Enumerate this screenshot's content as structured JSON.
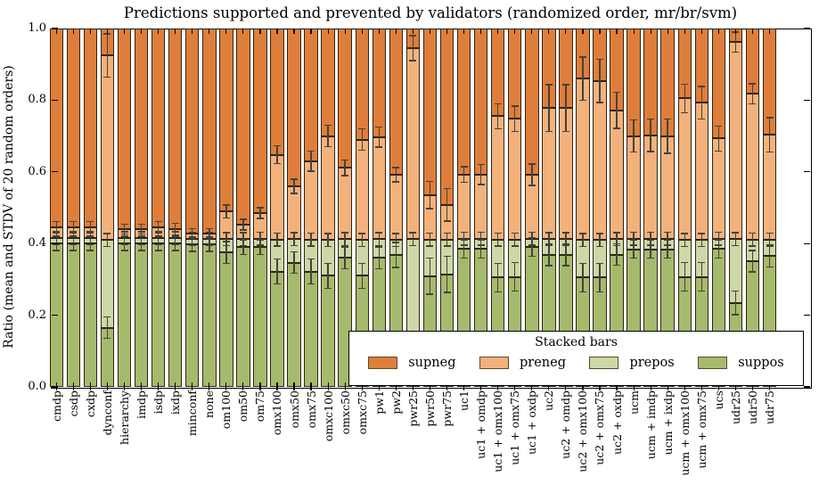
{
  "title": "Predictions supported and prevented by validators (randomized order, mr/br/svm)",
  "ylabel": "Ratio (mean and STDV of 20 random orders)",
  "legend": {
    "title": "Stacked bars",
    "entries": [
      {
        "label": "supneg",
        "color": "#df7e3b"
      },
      {
        "label": "preneg",
        "color": "#f3b27c"
      },
      {
        "label": "prepos",
        "color": "#cdd8a7"
      },
      {
        "label": "suppos",
        "color": "#a6ba6d"
      }
    ]
  },
  "axes": {
    "yticks": [
      "0.0",
      "0.2",
      "0.4",
      "0.6",
      "0.8",
      "1.0"
    ],
    "ylim": [
      0,
      1
    ]
  },
  "style": {
    "bar_edge": "#2e2512",
    "error_bar": "#46423a",
    "frame": "#000000",
    "background": "#ffffff"
  },
  "chart_data": {
    "type": "bar",
    "stacked": true,
    "grid": false,
    "legend_position": "lower right inside",
    "title": "Predictions supported and prevented by validators (randomized order, mr/br/svm)",
    "ylabel": "Ratio (mean and STDV of 20 random orders)",
    "ylim": [
      0,
      1
    ],
    "stack_order_bottom_to_top": [
      "suppos",
      "prepos",
      "preneg",
      "supneg"
    ],
    "values_note": "stack_tops are cumulative ratios read from the axis; every bar's supneg segment extends up to 1.0; errors are +/- STDV whiskers drawn at each stack boundary",
    "categories": [
      "cmdp",
      "csdp",
      "cxdp",
      "dynconf",
      "hierarchy",
      "imdp",
      "isdp",
      "ixdp",
      "minconf",
      "none",
      "om100",
      "om50",
      "om75",
      "omx100",
      "omx50",
      "omx75",
      "omxc100",
      "omxc50",
      "omxc75",
      "pw1",
      "pw2",
      "pwr25",
      "pwr50",
      "pwr75",
      "uc1",
      "uc1 + omdp",
      "uc1 + omx100",
      "uc1 + omx75",
      "uc1 + oxdp",
      "uc2",
      "uc2 + omdp",
      "uc2 + omx100",
      "uc2 + omx75",
      "uc2 + oxdp",
      "ucm",
      "ucm + imdp",
      "ucm + ixdp",
      "ucm + omx100",
      "ucm + omx75",
      "ucs",
      "udr25",
      "udr50",
      "udr75"
    ],
    "stack_tops": {
      "suppos": [
        0.4,
        0.4,
        0.4,
        0.165,
        0.4,
        0.4,
        0.4,
        0.4,
        0.398,
        0.398,
        0.375,
        0.39,
        0.39,
        0.322,
        0.347,
        0.322,
        0.31,
        0.36,
        0.31,
        0.36,
        0.368,
        0.12,
        0.309,
        0.314,
        0.385,
        0.385,
        0.305,
        0.307,
        0.39,
        0.368,
        0.368,
        0.305,
        0.305,
        0.369,
        0.384,
        0.384,
        0.384,
        0.307,
        0.307,
        0.385,
        0.234,
        0.351,
        0.365
      ],
      "prepos": [
        0.415,
        0.415,
        0.415,
        0.41,
        0.415,
        0.415,
        0.415,
        0.415,
        0.414,
        0.414,
        0.412,
        0.412,
        0.413,
        0.411,
        0.412,
        0.411,
        0.41,
        0.412,
        0.41,
        0.412,
        0.41,
        0.412,
        0.411,
        0.411,
        0.414,
        0.414,
        0.411,
        0.411,
        0.414,
        0.412,
        0.412,
        0.41,
        0.41,
        0.412,
        0.413,
        0.413,
        0.413,
        0.41,
        0.41,
        0.413,
        0.412,
        0.411,
        0.411
      ],
      "preneg": [
        0.445,
        0.445,
        0.445,
        0.925,
        0.44,
        0.44,
        0.445,
        0.44,
        0.428,
        0.428,
        0.49,
        0.453,
        0.485,
        0.648,
        0.56,
        0.63,
        0.7,
        0.611,
        0.69,
        0.697,
        0.592,
        0.945,
        0.535,
        0.508,
        0.593,
        0.593,
        0.755,
        0.748,
        0.592,
        0.778,
        0.778,
        0.86,
        0.854,
        0.772,
        0.7,
        0.702,
        0.7,
        0.805,
        0.793,
        0.693,
        0.962,
        0.818,
        0.703
      ],
      "supneg": 1.0
    },
    "errors": {
      "suppos": [
        0.02,
        0.02,
        0.02,
        0.03,
        0.02,
        0.02,
        0.02,
        0.02,
        0.02,
        0.02,
        0.03,
        0.02,
        0.02,
        0.035,
        0.03,
        0.035,
        0.035,
        0.03,
        0.035,
        0.03,
        0.035,
        0,
        0.05,
        0.05,
        0.025,
        0.025,
        0.04,
        0.04,
        0.025,
        0.03,
        0.03,
        0.04,
        0.04,
        0.03,
        0.025,
        0.025,
        0.025,
        0.04,
        0.04,
        0.025,
        0.033,
        0.03,
        0.03
      ],
      "prepos_default": 0.018,
      "preneg": [
        0.016,
        0.016,
        0.016,
        0.06,
        0.014,
        0.014,
        0.016,
        0.016,
        0.013,
        0.013,
        0.018,
        0.015,
        0.015,
        0.025,
        0.02,
        0.028,
        0.03,
        0.022,
        0.03,
        0.028,
        0.02,
        0.035,
        0.038,
        0.045,
        0.022,
        0.028,
        0.035,
        0.035,
        0.03,
        0.065,
        0.065,
        0.06,
        0.06,
        0.05,
        0.045,
        0.045,
        0.048,
        0.04,
        0.045,
        0.035,
        0.028,
        0.028,
        0.048
      ]
    }
  }
}
